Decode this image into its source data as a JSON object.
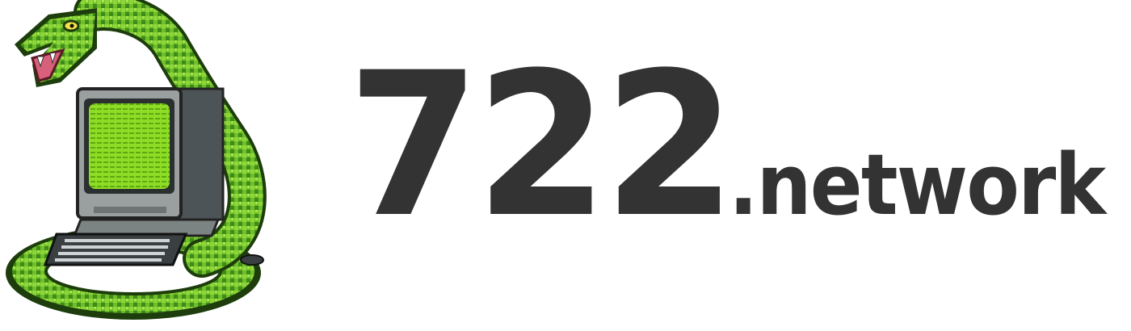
{
  "brand": {
    "number": "722",
    "tld": ".network"
  },
  "logo": {
    "icon": "snake-coiled-around-retro-computer-icon",
    "colors": {
      "snake": "#6fbf2a",
      "snake_dark": "#2f6b12",
      "screen": "#86d91e",
      "computer": "#8c9191",
      "text": "#333333"
    }
  }
}
